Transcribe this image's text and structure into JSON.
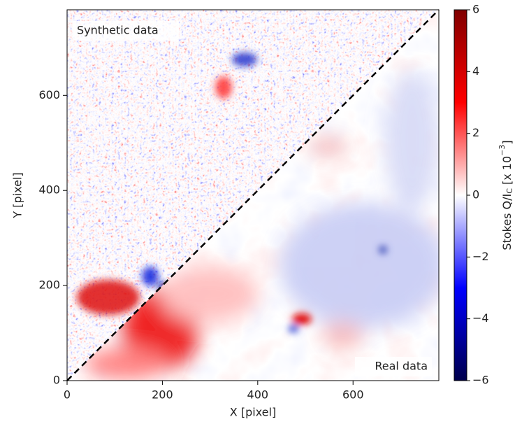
{
  "chart_data": {
    "type": "image",
    "xlabel": "X [pixel]",
    "ylabel": "Y [pixel]",
    "xlim": [
      0,
      780
    ],
    "ylim": [
      0,
      780
    ],
    "xticks": [
      0,
      200,
      400,
      600
    ],
    "yticks": [
      0,
      200,
      400,
      600
    ],
    "annotations": [
      "Synthetic data",
      "Real data"
    ],
    "colorbar": {
      "label": {
        "text": "Stokes Q/I",
        "sub": "C",
        "mid": " [x 10",
        "sup": "−3",
        "end": "]"
      },
      "lim": [
        -6,
        6
      ],
      "ticks": [
        {
          "value": -6,
          "label": "−6"
        },
        {
          "value": -4,
          "label": "−4"
        },
        {
          "value": -2,
          "label": "−2"
        },
        0,
        2,
        4,
        6
      ],
      "colormap": [
        "#00004c",
        "#0000ff",
        "#ffffff",
        "#ff0000",
        "#800000"
      ]
    }
  }
}
